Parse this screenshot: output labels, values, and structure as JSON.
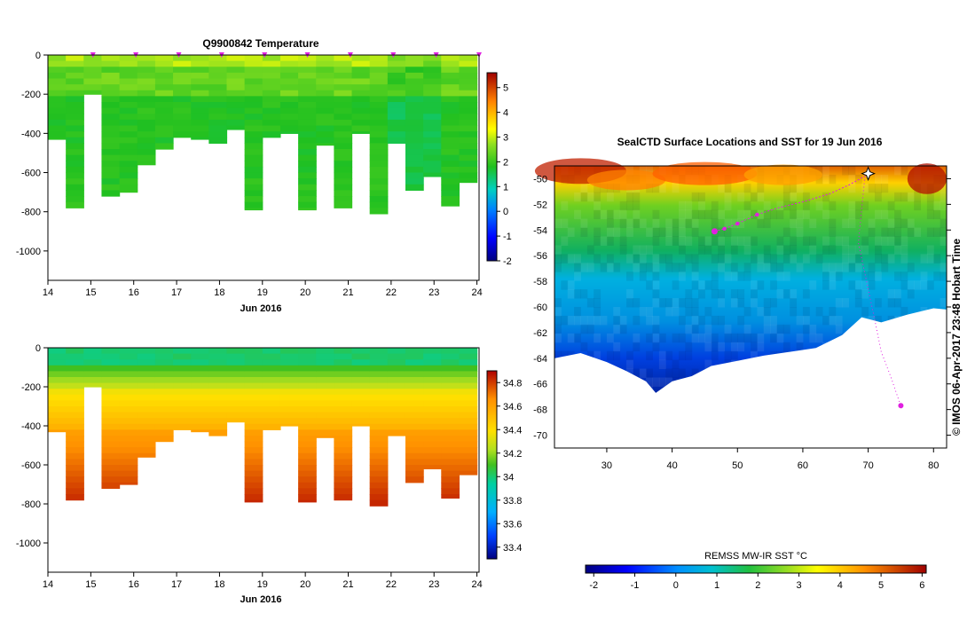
{
  "colors": {
    "marker": "#e020e0",
    "land_bg": "#ffffff"
  },
  "chart_data": [
    {
      "id": "temperature",
      "type": "heatmap",
      "title": "Q9900842  Temperature",
      "xlabel": "Jun 2016",
      "ylabel": "",
      "xlim": [
        14,
        24.05
      ],
      "ylim": [
        -1150,
        0
      ],
      "x_ticks": [
        "14",
        "15",
        "16",
        "17",
        "18",
        "19",
        "20",
        "21",
        "22",
        "23",
        "24"
      ],
      "y_ticks": [
        "0",
        "-200",
        "-400",
        "-600",
        "-800",
        "-1000"
      ],
      "y_tick_values": [
        0,
        -200,
        -400,
        -600,
        -800,
        -1000
      ],
      "colorbar": {
        "min": -2,
        "max": 5.6,
        "ticks": [
          "-2",
          "-1",
          "0",
          "1",
          "2",
          "3",
          "4",
          "5"
        ],
        "tick_values": [
          -2,
          -1,
          0,
          1,
          2,
          3,
          4,
          5
        ]
      },
      "profile_max_depths": [
        430,
        780,
        200,
        720,
        700,
        560,
        480,
        420,
        430,
        450,
        380,
        790,
        420,
        400,
        790,
        460,
        780,
        400,
        810,
        450,
        690,
        620,
        770,
        650
      ],
      "profile_marker_days": [
        15,
        16,
        17,
        18,
        19,
        20,
        21,
        22,
        23,
        24
      ]
    },
    {
      "id": "salinity",
      "type": "heatmap",
      "title": "",
      "xlabel": "Jun 2016",
      "ylabel": "",
      "xlim": [
        14,
        24.05
      ],
      "ylim": [
        -1150,
        0
      ],
      "x_ticks": [
        "14",
        "15",
        "16",
        "17",
        "18",
        "19",
        "20",
        "21",
        "22",
        "23",
        "24"
      ],
      "y_ticks": [
        "0",
        "-200",
        "-400",
        "-600",
        "-800",
        "-1000"
      ],
      "y_tick_values": [
        0,
        -200,
        -400,
        -600,
        -800,
        -1000
      ],
      "colorbar": {
        "min": 33.3,
        "max": 34.9,
        "ticks": [
          "33.4",
          "33.6",
          "33.8",
          "34",
          "34.2",
          "34.4",
          "34.6",
          "34.8"
        ],
        "tick_values": [
          33.4,
          33.6,
          33.8,
          34.0,
          34.2,
          34.4,
          34.6,
          34.8
        ]
      },
      "profile_max_depths": [
        430,
        780,
        200,
        720,
        700,
        560,
        480,
        420,
        430,
        450,
        380,
        790,
        420,
        400,
        790,
        460,
        780,
        400,
        810,
        450,
        690,
        620,
        770,
        650
      ]
    },
    {
      "id": "sst_map",
      "type": "heatmap",
      "title": "SealCTD Surface Locations and SST for 19 Jun 2016",
      "x_ticks": [
        "30",
        "40",
        "50",
        "60",
        "70",
        "80"
      ],
      "x_tick_values": [
        30,
        40,
        50,
        60,
        70,
        80
      ],
      "y_ticks": [
        "-50",
        "-52",
        "-54",
        "-56",
        "-58",
        "-60",
        "-62",
        "-64",
        "-66",
        "-68",
        "-70"
      ],
      "y_tick_values": [
        -50,
        -52,
        -54,
        -56,
        -58,
        -60,
        -62,
        -64,
        -66,
        -68,
        -70
      ],
      "xlim": [
        22,
        82
      ],
      "ylim": [
        -71,
        -49
      ],
      "colorbar": {
        "label": "REMSS MW-IR SST °C",
        "min": -2.2,
        "max": 6.1,
        "ticks": [
          "-2",
          "-1",
          "0",
          "1",
          "2",
          "3",
          "4",
          "5",
          "6"
        ],
        "tick_values": [
          -2,
          -1,
          0,
          1,
          2,
          3,
          4,
          5,
          6
        ]
      },
      "side_label": "© IMOS 06-Apr-2017 23:48 Hobart Time",
      "track_points": [
        [
          46.5,
          -54.1
        ],
        [
          48,
          -53.9
        ],
        [
          50,
          -53.5
        ],
        [
          53,
          -52.8
        ],
        [
          56,
          -52.3
        ],
        [
          60,
          -51.8
        ],
        [
          64,
          -51.2
        ],
        [
          67,
          -50.5
        ],
        [
          69.5,
          -49.8
        ]
      ],
      "south_track": [
        [
          69.5,
          -49.8
        ],
        [
          68.5,
          -55
        ],
        [
          71,
          -61
        ],
        [
          72,
          -63.5
        ],
        [
          73.5,
          -65.5
        ],
        [
          74.5,
          -67
        ],
        [
          75,
          -67.7
        ]
      ],
      "start_marker": [
        70,
        -49.6
      ]
    }
  ]
}
